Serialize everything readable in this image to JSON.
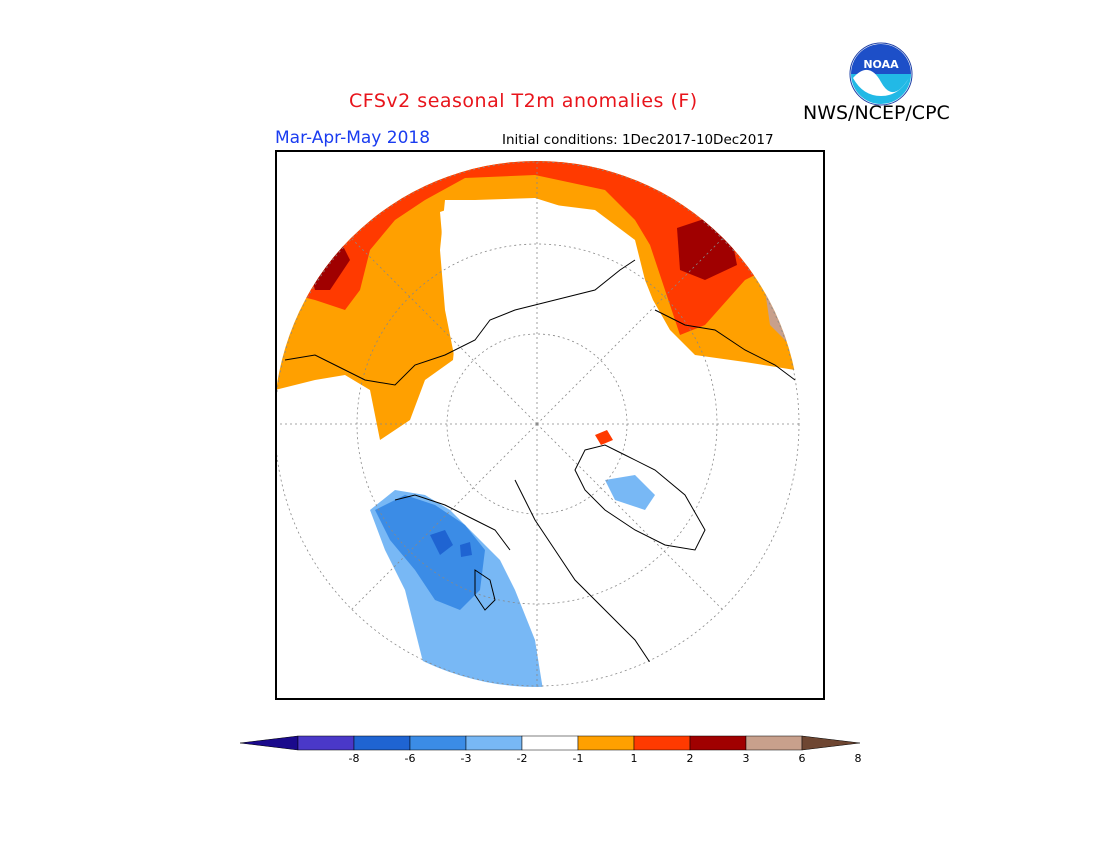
{
  "title": "CFSv2 seasonal T2m anomalies (F)",
  "agency": "NWS/NCEP/CPC",
  "logo_text": "NOAA",
  "season": "Mar-Apr-May 2018",
  "initial_conditions": "Initial conditions: 1Dec2017-10Dec2017",
  "legend": {
    "colors": [
      "#1a0a8c",
      "#4a38c8",
      "#1f64d2",
      "#3b8ce6",
      "#78b8f5",
      "#ffffff",
      "#ffa000",
      "#ff3a00",
      "#a00000",
      "#c8a08c",
      "#6e4632"
    ],
    "tick_labels": [
      "-8",
      "-6",
      "-3",
      "-2",
      "-1",
      "1",
      "2",
      "3",
      "6",
      "8"
    ]
  },
  "colors": {
    "title": "#e8141b",
    "season": "#1a3cf0",
    "frame": "#000000"
  }
}
